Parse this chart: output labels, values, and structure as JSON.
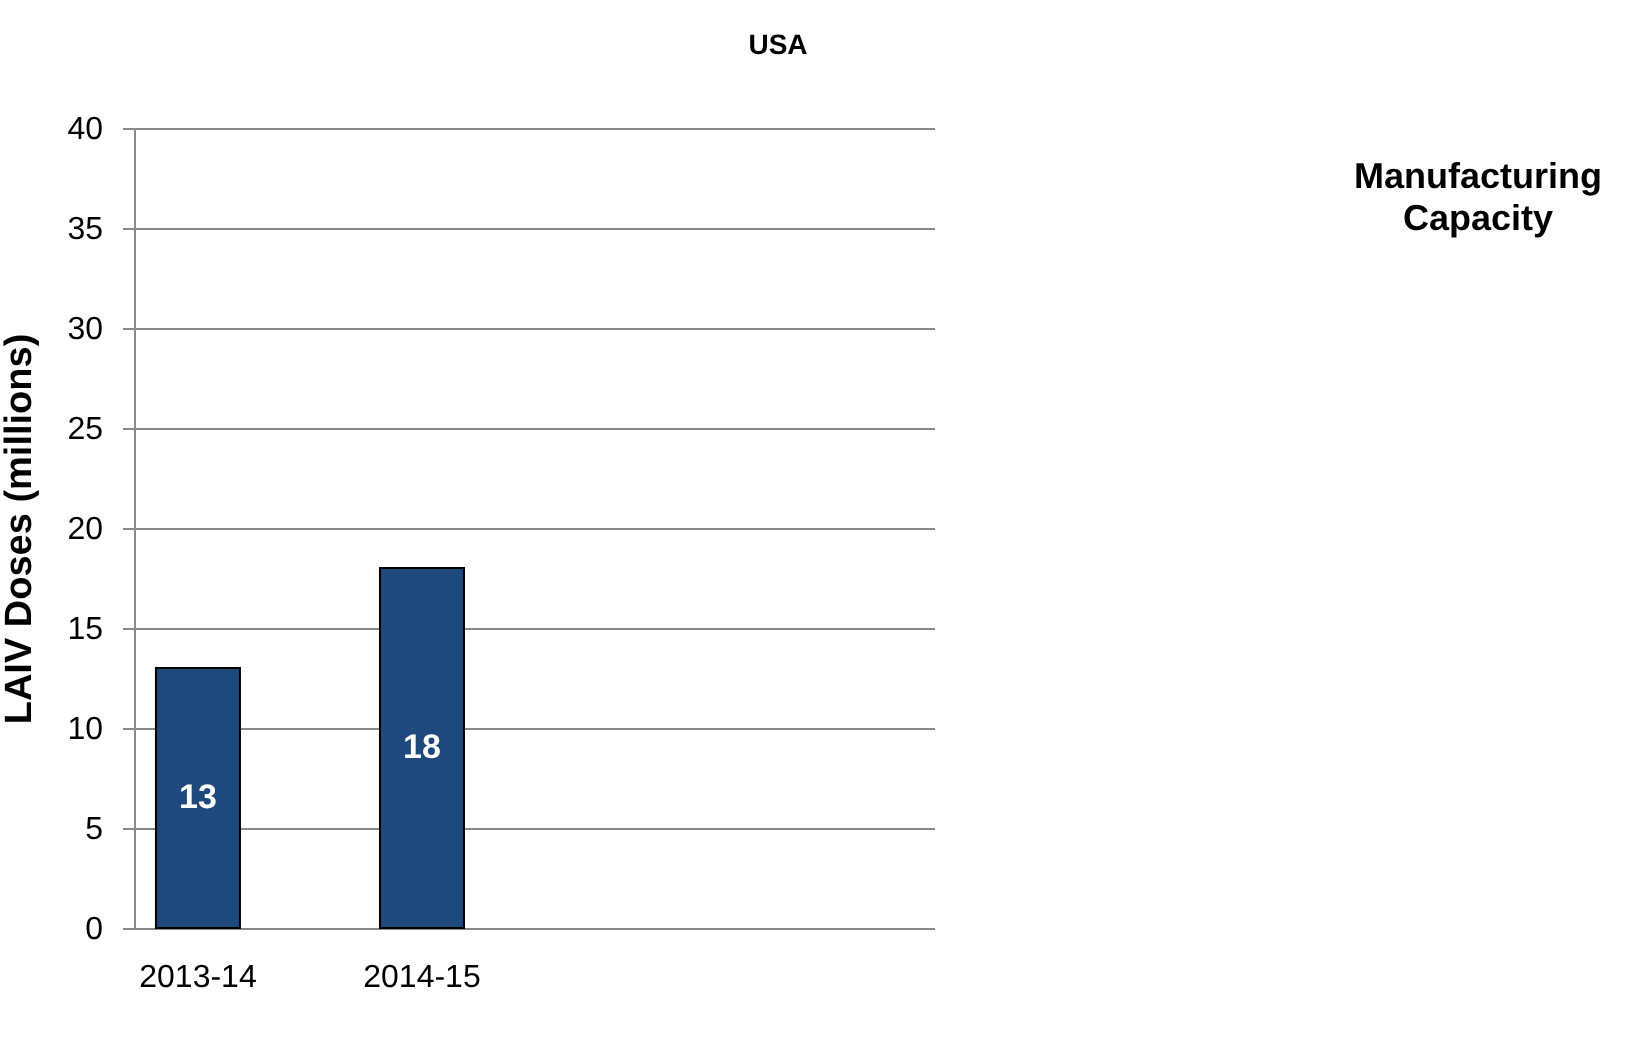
{
  "chart_data": {
    "type": "bar",
    "title": "USA",
    "ylabel": "LAIV Doses (millions)",
    "categories": [
      "2013-14",
      "2014-15",
      null,
      null
    ],
    "values": [
      13,
      18,
      null,
      null
    ],
    "color": "#1f497d",
    "ylim": [
      0,
      40
    ],
    "yticks": [
      0,
      5,
      10,
      15,
      20,
      25,
      30,
      35,
      40
    ],
    "grid": "y",
    "data_labels": true,
    "annotations": [
      "Manufacturing Capacity"
    ]
  }
}
